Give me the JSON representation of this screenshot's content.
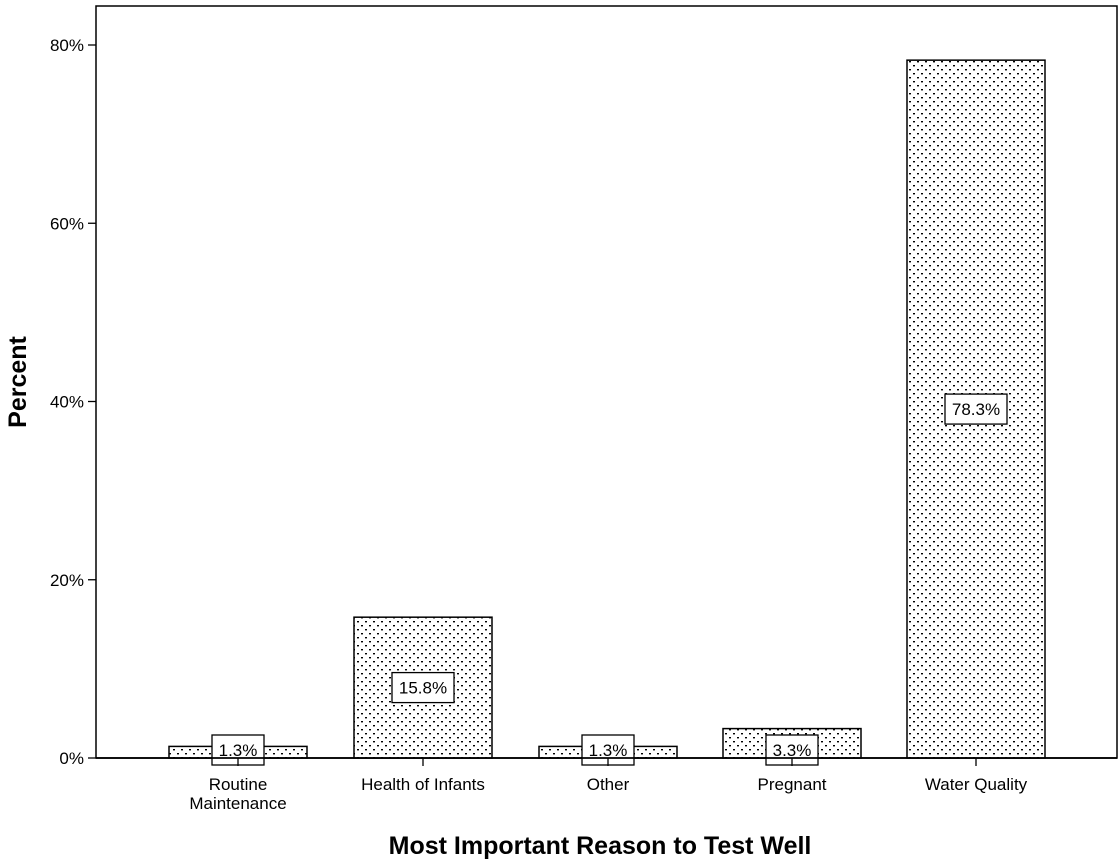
{
  "chart_data": {
    "type": "bar",
    "title": "",
    "xlabel": "Most Important Reason to Test Well",
    "ylabel": "Percent",
    "categories": [
      [
        "Routine",
        "Maintenance"
      ],
      [
        "Health of Infants"
      ],
      [
        "Other"
      ],
      [
        "Pregnant"
      ],
      [
        "Water Quality"
      ]
    ],
    "values": [
      1.3,
      15.8,
      1.3,
      3.3,
      78.3
    ],
    "data_labels": [
      "1.3%",
      "15.8%",
      "1.3%",
      "3.3%",
      "78.3%"
    ],
    "ylim": [
      0,
      84
    ],
    "yticks": [
      0,
      20,
      40,
      60,
      80
    ],
    "ytick_labels": [
      "0%",
      "20%",
      "40%",
      "60%",
      "80%"
    ],
    "grid": false,
    "legend": "none",
    "bar_fill": "dotted"
  }
}
